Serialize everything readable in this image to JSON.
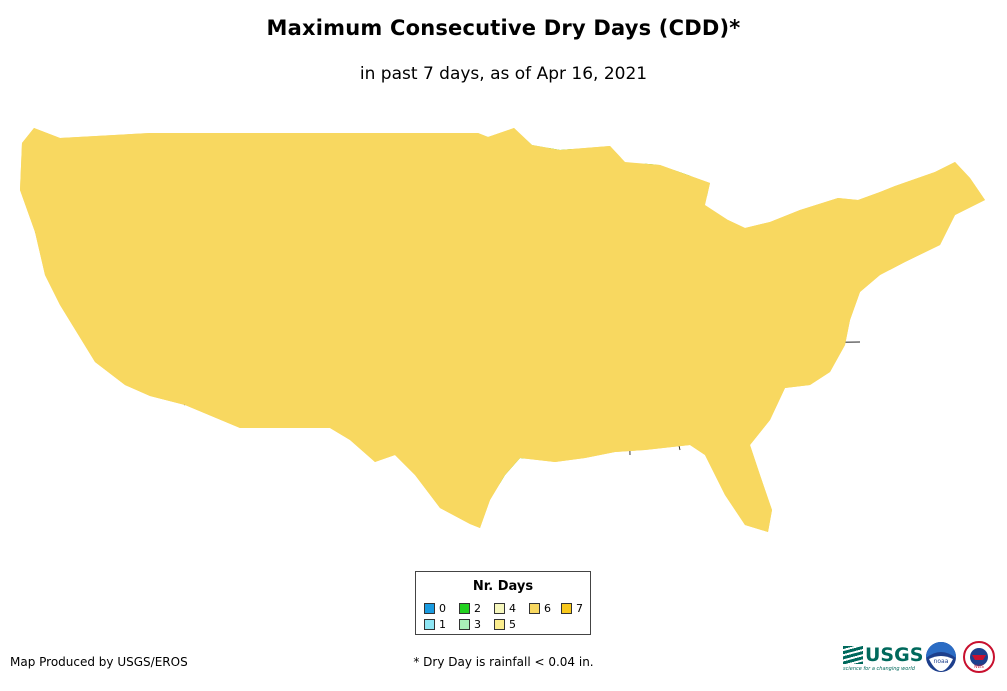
{
  "title": "Maximum Consecutive Dry Days (CDD)*",
  "subtitle": "in past 7 days, as of Apr 16, 2021",
  "legend": {
    "title": "Nr. Days",
    "items": [
      {
        "label": "0",
        "color": "#1a9be0"
      },
      {
        "label": "1",
        "color": "#8ee6f4"
      },
      {
        "label": "2",
        "color": "#22d11f"
      },
      {
        "label": "3",
        "color": "#a9f0b8"
      },
      {
        "label": "4",
        "color": "#f6f7bd"
      },
      {
        "label": "5",
        "color": "#fbed8e"
      },
      {
        "label": "6",
        "color": "#f8d860"
      },
      {
        "label": "7",
        "color": "#f8c81c"
      }
    ]
  },
  "credit": "Map Produced by USGS/EROS",
  "footnote": "* Dry Day is rainfall < 0.04 in.",
  "logos": {
    "usgs": "USGS",
    "usgs_tagline": "science for a changing world",
    "noaa": "noaa",
    "nws": "NWS"
  }
}
